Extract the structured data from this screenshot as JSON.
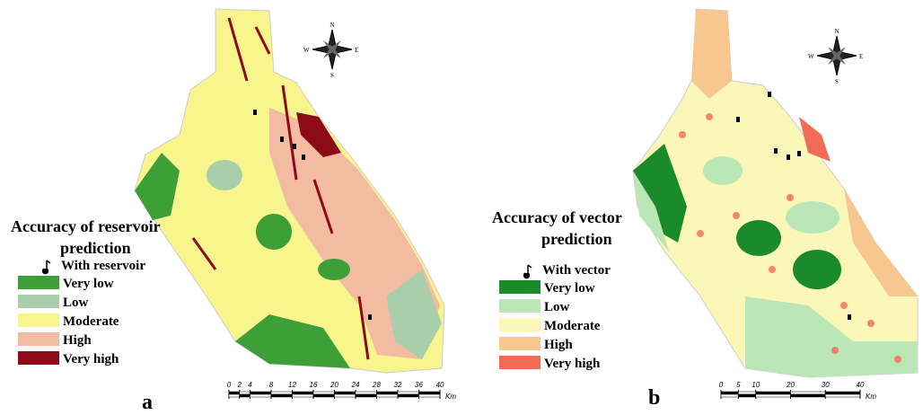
{
  "panels": [
    {
      "label": "a",
      "legend": {
        "title": [
          "Accuracy of reservoir",
          "prediction"
        ],
        "marker_label": "With reservoir",
        "classes": [
          {
            "label": "Very low",
            "color": "#3e9f38"
          },
          {
            "label": "Low",
            "color": "#a9ceaa"
          },
          {
            "label": "Moderate",
            "color": "#f8f58c"
          },
          {
            "label": "High",
            "color": "#f2bba2"
          },
          {
            "label": "Very high",
            "color": "#8c0b16"
          }
        ]
      },
      "compass": {
        "n": "N",
        "s": "S",
        "e": "E",
        "w": "W"
      },
      "scale": {
        "ticks": [
          0,
          2,
          4,
          8,
          12,
          16,
          20,
          24,
          28,
          32,
          36,
          40
        ],
        "unit": "Km"
      }
    },
    {
      "label": "b",
      "legend": {
        "title": [
          "Accuracy of  vector",
          "prediction"
        ],
        "marker_label": "With vector",
        "classes": [
          {
            "label": "Very low",
            "color": "#1b8a2b"
          },
          {
            "label": "Low",
            "color": "#bbe6b5"
          },
          {
            "label": "Moderate",
            "color": "#fbf7b9"
          },
          {
            "label": "High",
            "color": "#f7c78f"
          },
          {
            "label": "Very high",
            "color": "#f26b56"
          }
        ]
      },
      "compass": {
        "n": "N",
        "s": "S",
        "e": "E",
        "w": "W"
      },
      "scale": {
        "ticks": [
          0,
          5,
          10,
          20,
          30,
          40
        ],
        "unit": "Km"
      }
    }
  ]
}
